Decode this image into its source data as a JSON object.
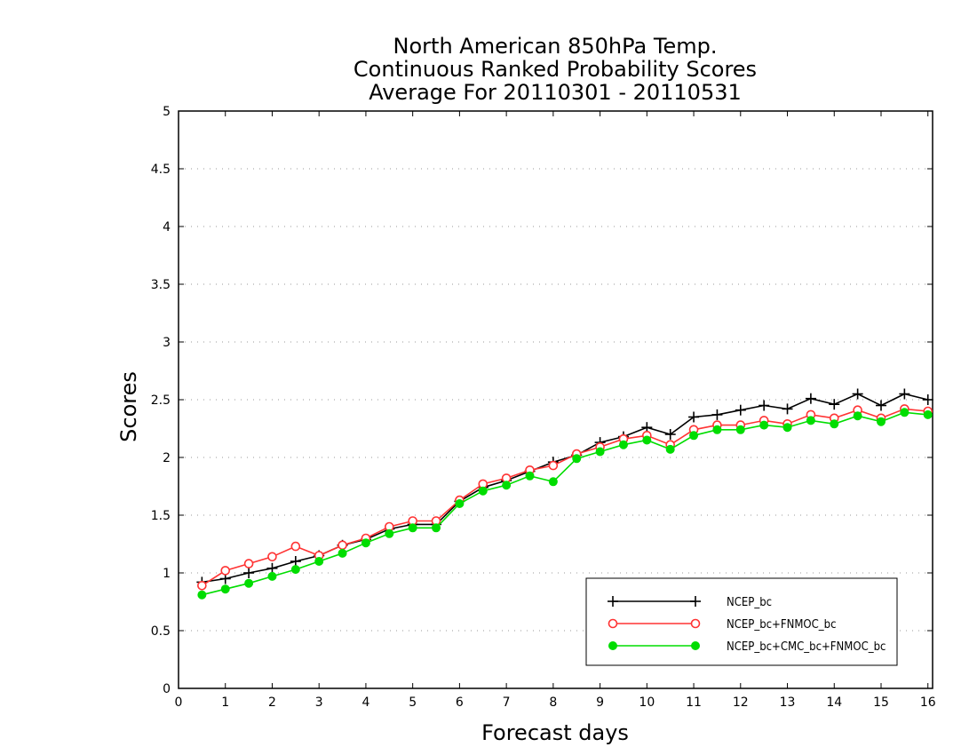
{
  "chart_data": {
    "type": "line",
    "title": [
      "North American 850hPa Temp.",
      "Continuous Ranked Probability Scores",
      "Average For 20110301 - 20110531"
    ],
    "xlabel": "Forecast days",
    "ylabel": "Scores",
    "xlim": [
      0,
      16.1
    ],
    "ylim": [
      0,
      5
    ],
    "xticks": [
      0,
      1,
      2,
      3,
      4,
      5,
      6,
      7,
      8,
      9,
      10,
      11,
      12,
      13,
      14,
      15,
      16
    ],
    "yticks": [
      0,
      0.5,
      1,
      1.5,
      2,
      2.5,
      3,
      3.5,
      4,
      4.5,
      5
    ],
    "ytick_labels": [
      "0",
      "0.5",
      "1",
      "1.5",
      "2",
      "2.5",
      "3",
      "3.5",
      "4",
      "4.5",
      "5"
    ],
    "grid": true,
    "legend_position": "bottom-right",
    "x": [
      0.5,
      1,
      1.5,
      2,
      2.5,
      3,
      3.5,
      4,
      4.5,
      5,
      5.5,
      6,
      6.5,
      7,
      7.5,
      8,
      8.5,
      9,
      9.5,
      10,
      10.5,
      11,
      11.5,
      12,
      12.5,
      13,
      13.5,
      14,
      14.5,
      15,
      15.5,
      16
    ],
    "series": [
      {
        "name": "NCEP_bc",
        "color": "#000000",
        "marker": "plus",
        "values": [
          0.92,
          0.95,
          1.0,
          1.04,
          1.1,
          1.15,
          1.24,
          1.29,
          1.38,
          1.42,
          1.42,
          1.62,
          1.74,
          1.8,
          1.88,
          1.96,
          2.02,
          2.13,
          2.18,
          2.26,
          2.2,
          2.35,
          2.37,
          2.41,
          2.45,
          2.42,
          2.51,
          2.46,
          2.55,
          2.45,
          2.55,
          2.5
        ]
      },
      {
        "name": "NCEP_bc+FNMOC_bc",
        "color": "#ff3333",
        "marker": "open-circle",
        "values": [
          0.89,
          1.02,
          1.08,
          1.14,
          1.23,
          1.15,
          1.24,
          1.3,
          1.4,
          1.45,
          1.45,
          1.63,
          1.77,
          1.82,
          1.89,
          1.93,
          2.03,
          2.09,
          2.16,
          2.19,
          2.11,
          2.24,
          2.28,
          2.28,
          2.32,
          2.29,
          2.37,
          2.34,
          2.41,
          2.34,
          2.42,
          2.4
        ]
      },
      {
        "name": "NCEP_bc+CMC_bc+FNMOC_bc",
        "color": "#00dd00",
        "marker": "filled-circle",
        "values": [
          0.81,
          0.86,
          0.91,
          0.97,
          1.03,
          1.1,
          1.17,
          1.26,
          1.34,
          1.39,
          1.39,
          1.6,
          1.71,
          1.76,
          1.84,
          1.79,
          1.99,
          2.05,
          2.11,
          2.15,
          2.07,
          2.19,
          2.24,
          2.24,
          2.28,
          2.26,
          2.32,
          2.29,
          2.36,
          2.31,
          2.39,
          2.37
        ]
      }
    ]
  }
}
